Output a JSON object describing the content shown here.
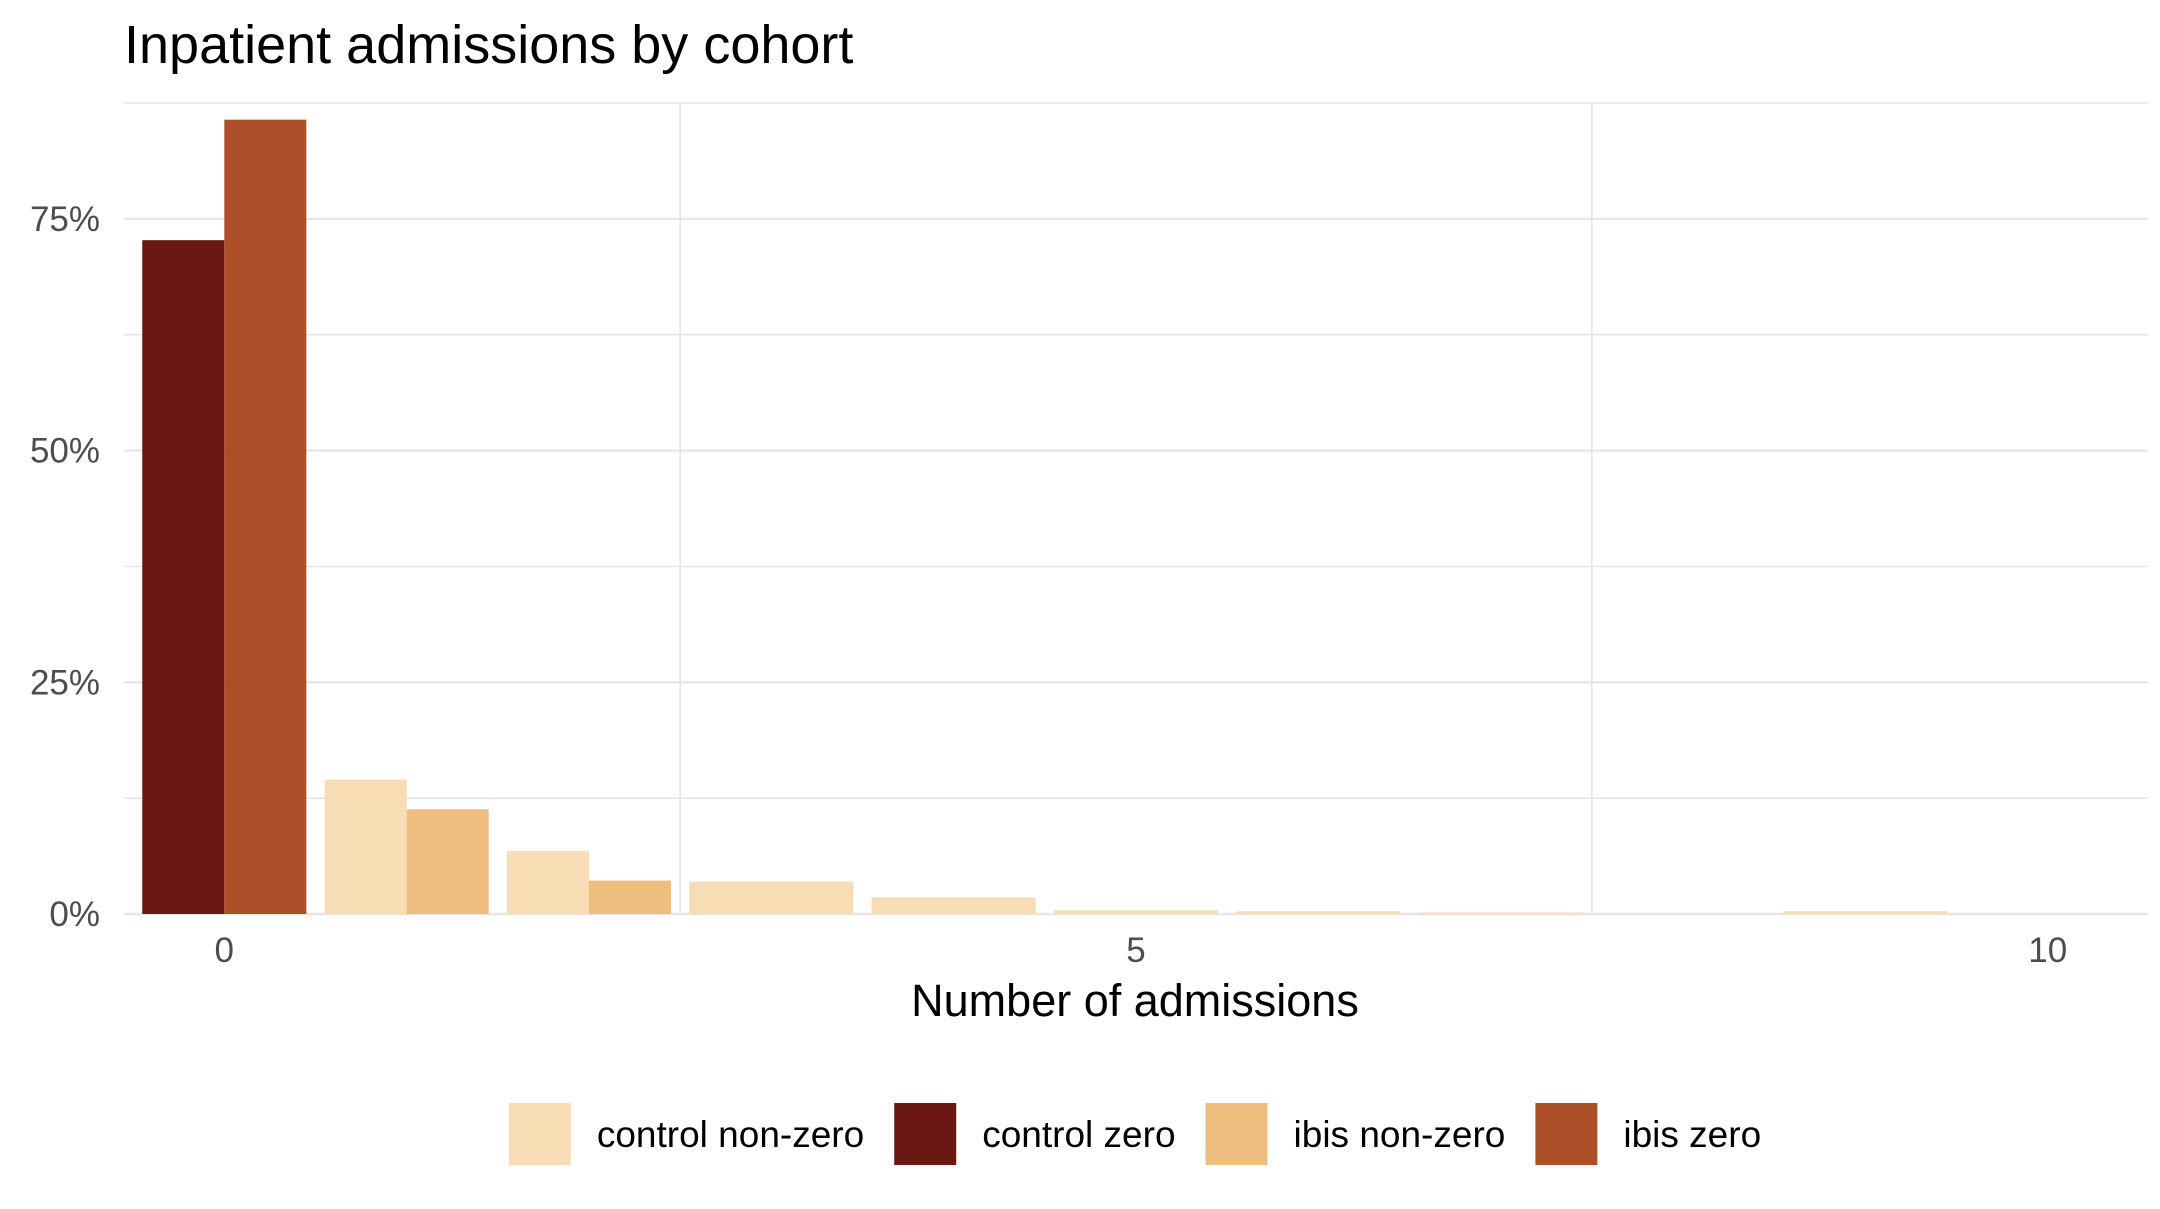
{
  "chart_data": {
    "type": "bar",
    "title": "Inpatient admissions by cohort",
    "xlabel": "Number of admissions",
    "ylabel": "",
    "x_ticks": [
      0,
      5,
      10
    ],
    "y_ticks": [
      "0%",
      "25%",
      "50%",
      "75%"
    ],
    "xlim": [
      -0.55,
      10.55
    ],
    "ylim": [
      0,
      0.875
    ],
    "grid": true,
    "legend_position": "bottom",
    "legend": [
      "control non-zero",
      "control zero",
      "ibis non-zero",
      "ibis zero"
    ],
    "colors": {
      "control non-zero": "#F8DCB3",
      "control zero": "#6B1812",
      "ibis non-zero": "#EEBE7E",
      "ibis zero": "#AD4F28"
    },
    "bars": [
      {
        "series": "control zero",
        "x": 0,
        "value": 0.727
      },
      {
        "series": "ibis zero",
        "x": 0,
        "value": 0.857
      },
      {
        "series": "control non-zero",
        "x": 1,
        "value": 0.145
      },
      {
        "series": "ibis non-zero",
        "x": 1,
        "value": 0.113
      },
      {
        "series": "control non-zero",
        "x": 2,
        "value": 0.068
      },
      {
        "series": "ibis non-zero",
        "x": 2,
        "value": 0.036
      },
      {
        "series": "control non-zero",
        "x": 3,
        "value": 0.035
      },
      {
        "series": "control non-zero",
        "x": 4,
        "value": 0.018
      },
      {
        "series": "control non-zero",
        "x": 5,
        "value": 0.004
      },
      {
        "series": "control non-zero",
        "x": 6,
        "value": 0.003
      },
      {
        "series": "control non-zero",
        "x": 7,
        "value": 0.0015
      },
      {
        "series": "control non-zero",
        "x": 9,
        "value": 0.003
      }
    ]
  }
}
